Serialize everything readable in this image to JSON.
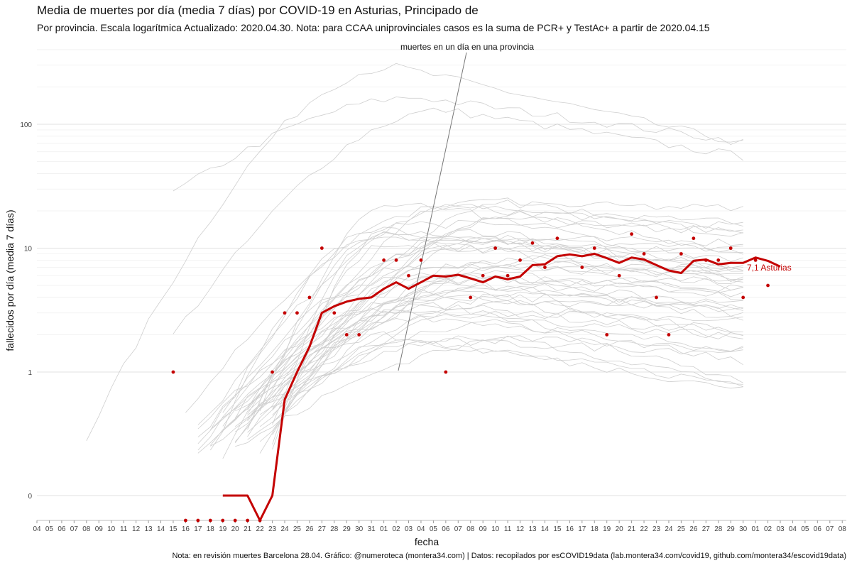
{
  "chart_data": {
    "type": "line",
    "title": "Media de muertes por día (media 7 días) por COVID-19 en Asturias, Principado de",
    "subtitle": "Por provincia. Escala logarítmica  Actualizado: 2020.04.30. Nota: para CCAA uniprovinciales casos es la suma de PCR+ y TestAc+ a partir de 2020.04.15",
    "xlabel": "fecha",
    "ylabel": "fallecidos por día (media 7 días)",
    "y_scale": "log",
    "y_ticks": [
      0,
      1,
      10,
      100
    ],
    "y_tick_labels": [
      "0",
      "1",
      "10",
      "100"
    ],
    "x_tick_labels": [
      "04",
      "05",
      "06",
      "07",
      "08",
      "09",
      "10",
      "11",
      "12",
      "13",
      "14",
      "15",
      "16",
      "17",
      "18",
      "19",
      "20",
      "21",
      "22",
      "23",
      "24",
      "25",
      "26",
      "27",
      "28",
      "29",
      "30",
      "31",
      "01",
      "02",
      "03",
      "04",
      "05",
      "06",
      "07",
      "08",
      "09",
      "10",
      "11",
      "12",
      "13",
      "14",
      "15",
      "16",
      "17",
      "18",
      "19",
      "20",
      "21",
      "22",
      "23",
      "24",
      "25",
      "26",
      "27",
      "28",
      "29",
      "30",
      "01",
      "02",
      "03",
      "04",
      "05",
      "06",
      "07",
      "08"
    ],
    "annotation": "muertes en un día en una provincia",
    "end_label": "7,1 Asturias",
    "caption": "Nota: en revisión muertes Barcelona 28.04. Gráfico: @numeroteca (montera34.com) | Datos: recopilados por esCOVID19data (lab.montera34.com/covid19, github.com/montera34/escovid19data)",
    "colors": {
      "highlight": "#c40000",
      "background_lines": "#cccccc",
      "grid": "#e6e6e6"
    },
    "series": [
      {
        "name": "Asturias",
        "start_index": 11,
        "avg": [
          null,
          null,
          null,
          null,
          0,
          0,
          0,
          -1,
          0,
          0.6,
          1,
          1.6,
          3,
          3.4,
          3.7,
          3.9,
          4,
          4.7,
          5.3,
          4.7,
          5.3,
          6,
          5.9,
          6.1,
          5.7,
          5.3,
          5.9,
          5.6,
          5.9,
          7.3,
          7.4,
          8.6,
          8.9,
          8.6,
          9,
          8.3,
          7.6,
          8.4,
          8.1,
          7.3,
          6.6,
          6.3,
          7.9,
          8.1,
          7.4,
          7.6,
          7.6,
          8.4,
          7.9,
          7.1
        ],
        "daily": [
          1,
          0,
          0,
          0,
          0,
          0,
          0,
          0,
          1,
          3,
          3,
          4,
          10,
          3,
          2,
          2,
          null,
          8,
          8,
          6,
          8,
          null,
          1,
          null,
          4,
          6,
          10,
          6,
          8,
          11,
          7,
          12,
          null,
          7,
          10,
          2,
          6,
          13,
          9,
          4,
          2,
          9,
          12,
          8,
          8,
          10,
          4,
          8,
          5,
          null
        ]
      }
    ]
  }
}
